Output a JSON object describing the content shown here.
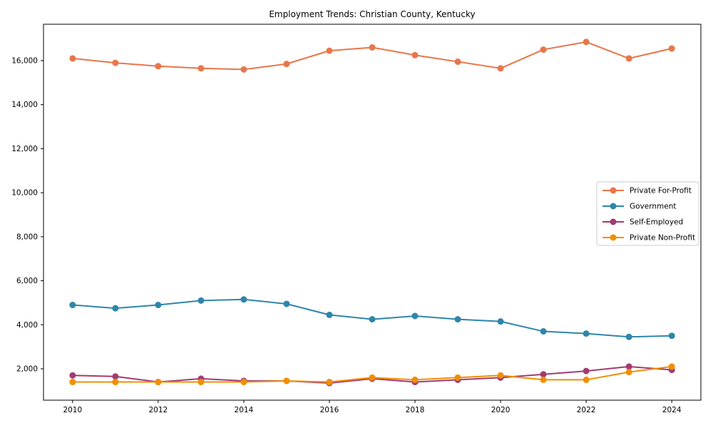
{
  "chart_data": {
    "type": "line",
    "title": "Employment Trends: Christian County, Kentucky",
    "xlabel": "",
    "ylabel": "",
    "grid": false,
    "legend_position": "center-right",
    "x": [
      2010,
      2011,
      2012,
      2013,
      2014,
      2015,
      2016,
      2017,
      2018,
      2019,
      2020,
      2021,
      2022,
      2023,
      2024
    ],
    "x_ticks": [
      2010,
      2012,
      2014,
      2016,
      2018,
      2020,
      2022,
      2024
    ],
    "x_tick_labels": [
      "2010",
      "2012",
      "2014",
      "2016",
      "2018",
      "2020",
      "2022",
      "2024"
    ],
    "y_ticks": [
      2000,
      4000,
      6000,
      8000,
      10000,
      12000,
      14000,
      16000
    ],
    "y_tick_labels": [
      "2,000",
      "4,000",
      "6,000",
      "8,000",
      "10,000",
      "12,000",
      "14,000",
      "16,000"
    ],
    "xlim": [
      2009.32,
      2024.68
    ],
    "ylim": [
      574,
      17653
    ],
    "series": [
      {
        "name": "Private For-Profit",
        "color": "#e8764b",
        "values": [
          16100,
          15900,
          15750,
          15650,
          15600,
          15850,
          16450,
          16600,
          16250,
          15950,
          15650,
          16500,
          16850,
          16100,
          16550
        ]
      },
      {
        "name": "Government",
        "color": "#2e86ab",
        "values": [
          4900,
          4750,
          4900,
          5100,
          5150,
          4950,
          4450,
          4250,
          4400,
          4250,
          4150,
          3700,
          3600,
          3450,
          3500
        ]
      },
      {
        "name": "Self-Employed",
        "color": "#a23b72",
        "values": [
          1700,
          1650,
          1400,
          1550,
          1450,
          1450,
          1350,
          1550,
          1400,
          1500,
          1600,
          1750,
          1900,
          2100,
          1950
        ]
      },
      {
        "name": "Private Non-Profit",
        "color": "#f18f01",
        "values": [
          1400,
          1400,
          1400,
          1400,
          1400,
          1450,
          1400,
          1600,
          1500,
          1600,
          1700,
          1500,
          1500,
          1850,
          2100
        ]
      }
    ],
    "axis_color": "#000000",
    "legend_border_color": "#cccccc"
  }
}
